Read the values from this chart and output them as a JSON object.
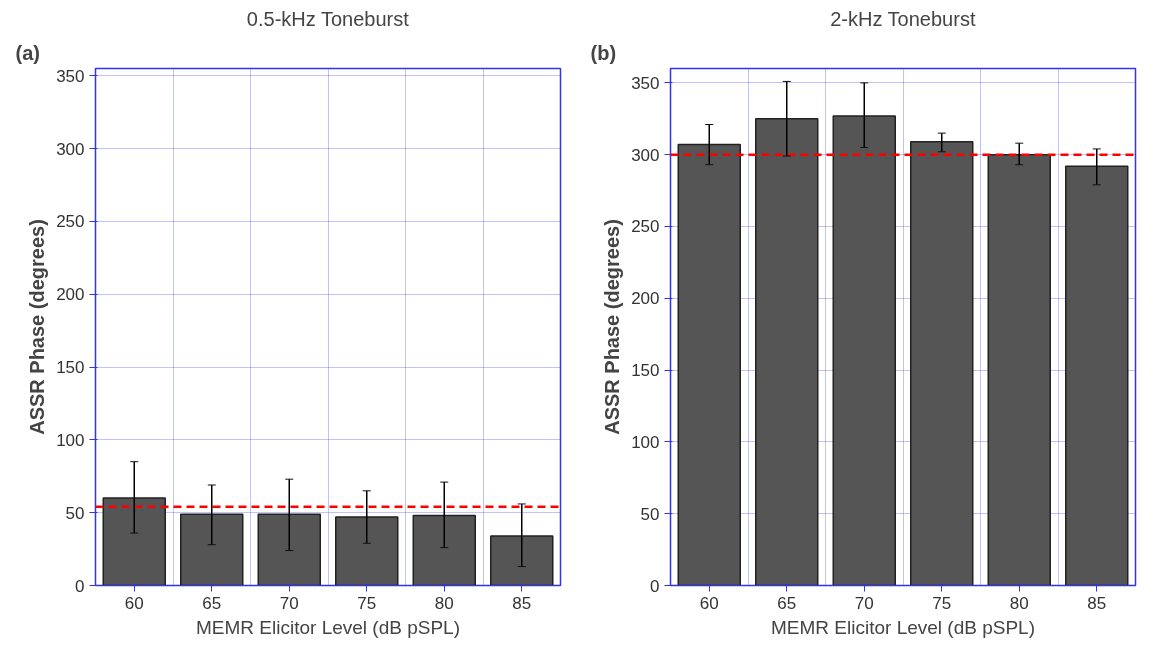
{
  "chart_data": [
    {
      "type": "bar",
      "title": "0.5-kHz Toneburst",
      "xlabel": "MEMR Elicitor Level (dB pSPL)",
      "ylabel": "ASSR Phase (degrees)",
      "annotations": [
        "(a)"
      ],
      "categories": [
        "60",
        "65",
        "70",
        "75",
        "80",
        "85"
      ],
      "values": [
        60,
        49,
        49,
        47,
        48,
        34
      ],
      "errors": [
        [
          36,
          85
        ],
        [
          28,
          69
        ],
        [
          24,
          73
        ],
        [
          29,
          65
        ],
        [
          26,
          71
        ],
        [
          13,
          56
        ]
      ],
      "color": "#555555",
      "ylim": [
        0,
        355
      ],
      "yticks": [
        0,
        50,
        100,
        150,
        200,
        250,
        300,
        350
      ],
      "grid": true,
      "ref_lines": [
        {
          "axis": "y",
          "value": 54,
          "color": "#ff0000",
          "line_style": "dashed"
        }
      ]
    },
    {
      "type": "bar",
      "title": "2-kHz Toneburst",
      "xlabel": "MEMR Elicitor Level (dB pSPL)",
      "ylabel": "ASSR Phase (degrees)",
      "annotations": [
        "(b)"
      ],
      "categories": [
        "60",
        "65",
        "70",
        "75",
        "80",
        "85"
      ],
      "values": [
        307,
        325,
        327,
        309,
        300,
        292
      ],
      "errors": [
        [
          293,
          321
        ],
        [
          299,
          351
        ],
        [
          305,
          350
        ],
        [
          302,
          315
        ],
        [
          293,
          308
        ],
        [
          279,
          304
        ]
      ],
      "color": "#555555",
      "ylim": [
        0,
        360
      ],
      "yticks": [
        0,
        50,
        100,
        150,
        200,
        250,
        300,
        350
      ],
      "grid": true,
      "ref_lines": [
        {
          "axis": "y",
          "value": 300,
          "color": "#ff0000",
          "line_style": "dashed"
        }
      ]
    }
  ]
}
